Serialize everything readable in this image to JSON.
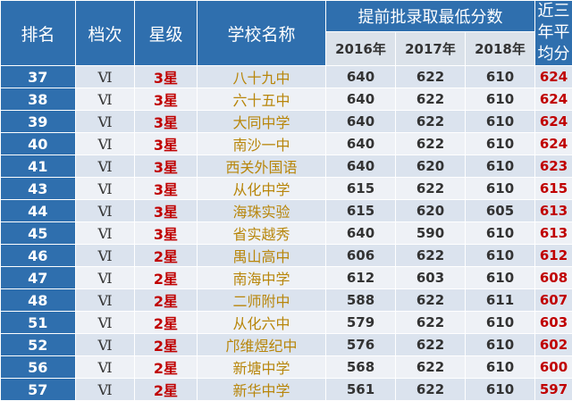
{
  "header": {
    "rank": "排名",
    "level": "档次",
    "stars": "星级",
    "school": "学校名称",
    "score_group": "提前批录取最低分数",
    "years": [
      "2016年",
      "2017年",
      "2018年"
    ],
    "average": "近三年平均分"
  },
  "rows": [
    {
      "rank": "37",
      "level": "Ⅵ",
      "stars": "3星",
      "school": "八十九中",
      "s2016": "640",
      "s2017": "622",
      "s2018": "610",
      "avg": "624"
    },
    {
      "rank": "38",
      "level": "Ⅵ",
      "stars": "3星",
      "school": "六十五中",
      "s2016": "640",
      "s2017": "622",
      "s2018": "610",
      "avg": "624"
    },
    {
      "rank": "39",
      "level": "Ⅵ",
      "stars": "3星",
      "school": "大同中学",
      "s2016": "640",
      "s2017": "622",
      "s2018": "610",
      "avg": "624"
    },
    {
      "rank": "40",
      "level": "Ⅵ",
      "stars": "3星",
      "school": "南沙一中",
      "s2016": "640",
      "s2017": "622",
      "s2018": "610",
      "avg": "624"
    },
    {
      "rank": "41",
      "level": "Ⅵ",
      "stars": "3星",
      "school": "西关外国语",
      "s2016": "640",
      "s2017": "620",
      "s2018": "610",
      "avg": "623"
    },
    {
      "rank": "43",
      "level": "Ⅵ",
      "stars": "3星",
      "school": "从化中学",
      "s2016": "615",
      "s2017": "622",
      "s2018": "610",
      "avg": "615"
    },
    {
      "rank": "44",
      "level": "Ⅵ",
      "stars": "3星",
      "school": "海珠实验",
      "s2016": "615",
      "s2017": "620",
      "s2018": "605",
      "avg": "613"
    },
    {
      "rank": "45",
      "level": "Ⅵ",
      "stars": "3星",
      "school": "省实越秀",
      "s2016": "640",
      "s2017": "590",
      "s2018": "610",
      "avg": "613"
    },
    {
      "rank": "46",
      "level": "Ⅵ",
      "stars": "2星",
      "school": "禺山高中",
      "s2016": "606",
      "s2017": "622",
      "s2018": "610",
      "avg": "612"
    },
    {
      "rank": "47",
      "level": "Ⅵ",
      "stars": "2星",
      "school": "南海中学",
      "s2016": "612",
      "s2017": "603",
      "s2018": "610",
      "avg": "608"
    },
    {
      "rank": "48",
      "level": "Ⅵ",
      "stars": "2星",
      "school": "二师附中",
      "s2016": "588",
      "s2017": "622",
      "s2018": "611",
      "avg": "607"
    },
    {
      "rank": "51",
      "level": "Ⅵ",
      "stars": "2星",
      "school": "从化六中",
      "s2016": "579",
      "s2017": "622",
      "s2018": "610",
      "avg": "603"
    },
    {
      "rank": "52",
      "level": "Ⅵ",
      "stars": "2星",
      "school": "邝维煜纪中",
      "s2016": "576",
      "s2017": "622",
      "s2018": "610",
      "avg": "602"
    },
    {
      "rank": "56",
      "level": "Ⅵ",
      "stars": "2星",
      "school": "新塘中学",
      "s2016": "568",
      "s2017": "622",
      "s2018": "610",
      "avg": "600"
    },
    {
      "rank": "57",
      "level": "Ⅵ",
      "stars": "2星",
      "school": "新华中学",
      "s2016": "561",
      "s2017": "622",
      "s2018": "610",
      "avg": "597"
    }
  ],
  "colors": {
    "header_blue": "#2f6fae",
    "star_red": "#c00000",
    "school_gold": "#b8860b",
    "row_odd": "#dbe3ee",
    "row_even": "#eef1f6"
  }
}
